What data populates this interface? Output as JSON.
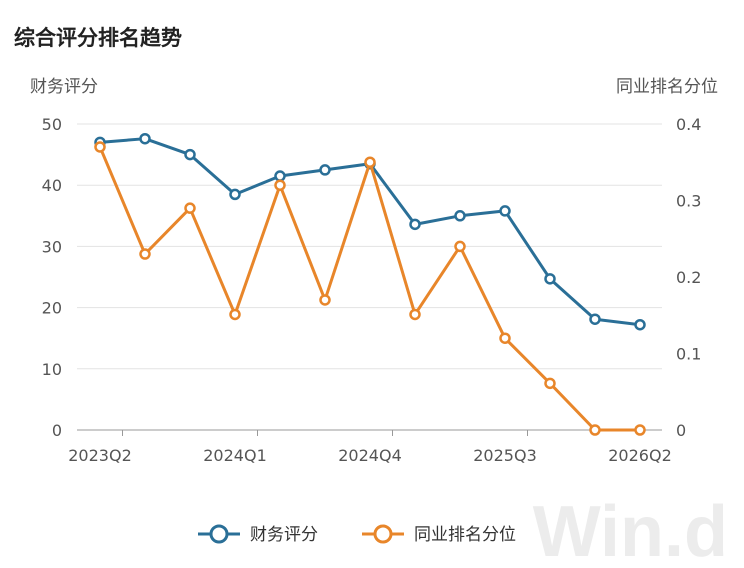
{
  "chart_data": {
    "type": "line",
    "title": "综合评分排名趋势",
    "x": [
      "2023Q2",
      "2023Q3",
      "2023Q4",
      "2024Q1",
      "2024Q2",
      "2024Q3",
      "2024Q4",
      "2025Q1",
      "2025Q2",
      "2025Q3",
      "2025Q4",
      "2026Q1",
      "2026Q2"
    ],
    "x_tick_labels": [
      "2023Q2",
      "2024Q1",
      "2024Q4",
      "2025Q3",
      "2026Q2"
    ],
    "y_left": {
      "label": "财务评分",
      "ylim": [
        0,
        50
      ],
      "ticks": [
        0,
        10,
        20,
        30,
        40,
        50
      ]
    },
    "y_right": {
      "label": "同业排名分位",
      "ylim": [
        0,
        0.4
      ],
      "ticks": [
        0,
        0.1,
        0.2,
        0.3,
        0.4
      ]
    },
    "series": [
      {
        "name": "财务评分",
        "axis": "left",
        "color": "#2a6f97",
        "values": [
          47.0,
          47.6,
          45.0,
          38.5,
          41.5,
          42.5,
          43.5,
          33.6,
          35.0,
          35.8,
          24.7,
          18.1,
          17.2
        ]
      },
      {
        "name": "同业排名分位",
        "axis": "right",
        "color": "#e8862a",
        "values": [
          0.37,
          0.23,
          0.29,
          0.151,
          0.32,
          0.17,
          0.35,
          0.151,
          0.24,
          0.12,
          0.061,
          0.0,
          0.0
        ]
      }
    ],
    "grid": true,
    "legend": "bottom-center"
  },
  "watermark": "Win.d"
}
